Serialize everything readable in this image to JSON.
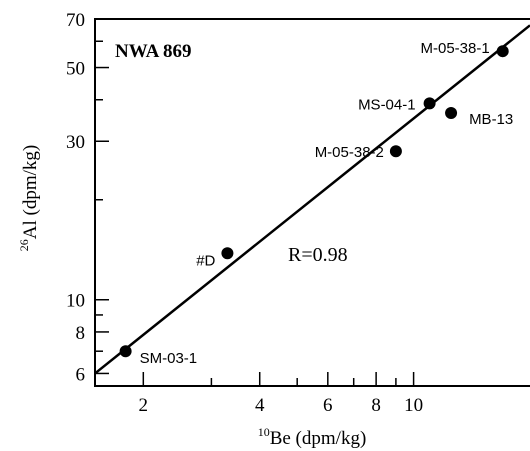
{
  "chart_data": {
    "type": "scatter",
    "title": "NWA 869",
    "xlabel_sup": "10",
    "xlabel_main": "Be (dpm/kg)",
    "ylabel_sup": "26",
    "ylabel_main": "Al (dpm/kg)",
    "x_scale": "log",
    "y_scale": "log",
    "xlim": [
      1.5,
      20
    ],
    "ylim": [
      5.5,
      70
    ],
    "x_ticks": [
      "2",
      "4",
      "6",
      "8",
      "10"
    ],
    "y_ticks": [
      "6",
      "8",
      "10",
      "30",
      "50",
      "70"
    ],
    "grid": false,
    "annotation": "R=0.98",
    "points": [
      {
        "label": "SM-03-1",
        "x": 1.8,
        "y": 7.0
      },
      {
        "label": "#D",
        "x": 3.3,
        "y": 13.8
      },
      {
        "label": "M-05-38-2",
        "x": 9.0,
        "y": 28.0
      },
      {
        "label": "MS-04-1",
        "x": 11.0,
        "y": 39.0
      },
      {
        "label": "MB-13",
        "x": 12.5,
        "y": 36.5
      },
      {
        "label": "M-05-38-1",
        "x": 17.0,
        "y": 56.0
      }
    ],
    "fit_line": {
      "x": [
        1.5,
        20
      ],
      "y": [
        6.0,
        67.0
      ]
    },
    "colors": {
      "marker": "#000000",
      "line": "#000000",
      "background": "#ffffff"
    }
  }
}
